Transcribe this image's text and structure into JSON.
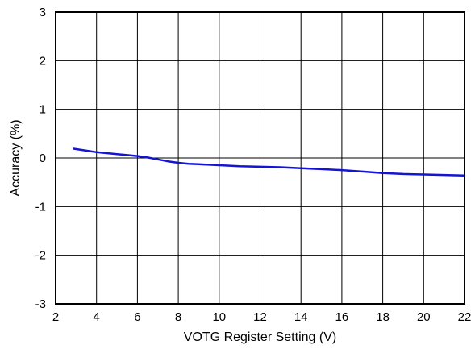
{
  "chart_data": {
    "type": "line",
    "title": "",
    "xlabel": "VOTG Register Setting (V)",
    "ylabel": "Accuracy (%)",
    "xlim": [
      2,
      22
    ],
    "ylim": [
      -3,
      3
    ],
    "xticks": [
      2,
      4,
      6,
      8,
      10,
      12,
      14,
      16,
      18,
      20,
      22
    ],
    "yticks": [
      -3,
      -2,
      -1,
      0,
      1,
      2,
      3
    ],
    "xtick_labels": [
      "2",
      "4",
      "6",
      "8",
      "10",
      "12",
      "14",
      "16",
      "18",
      "20",
      "22"
    ],
    "ytick_labels": [
      "-3",
      "-2",
      "-1",
      "0",
      "1",
      "2",
      "3"
    ],
    "grid": true,
    "series": [
      {
        "color": "#1414d2",
        "x": [
          2.88,
          3.5,
          4,
          4.5,
          5,
          5.5,
          6,
          6.5,
          7,
          7.5,
          8,
          8.5,
          9,
          10,
          11,
          12,
          13,
          14,
          15,
          16,
          17,
          18,
          19,
          20,
          21,
          22
        ],
        "y": [
          0.19,
          0.15,
          0.12,
          0.1,
          0.08,
          0.06,
          0.04,
          0.01,
          -0.03,
          -0.07,
          -0.1,
          -0.12,
          -0.13,
          -0.15,
          -0.17,
          -0.18,
          -0.19,
          -0.21,
          -0.23,
          -0.25,
          -0.28,
          -0.31,
          -0.33,
          -0.34,
          -0.35,
          -0.36
        ]
      }
    ]
  }
}
